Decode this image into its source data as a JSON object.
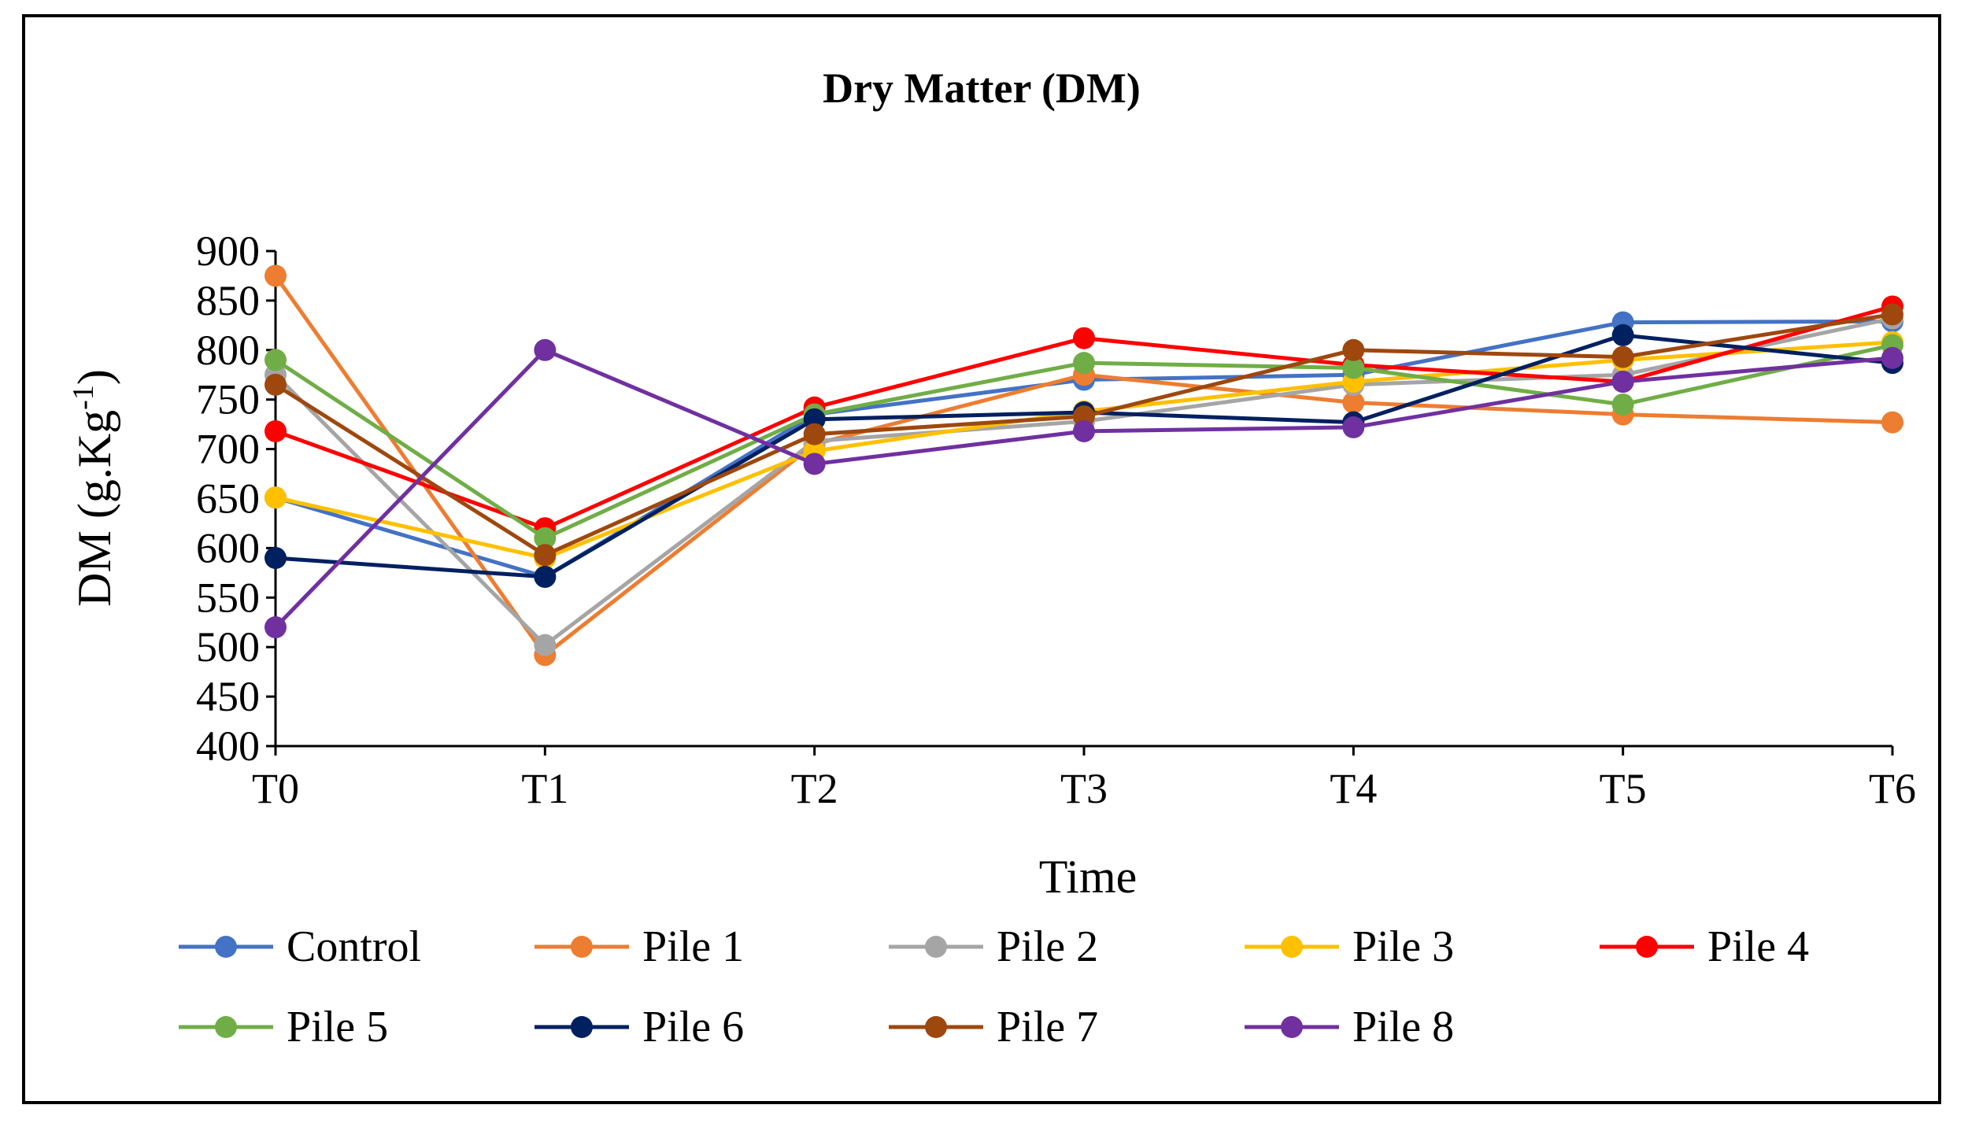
{
  "chart_data": {
    "type": "line",
    "title": "Dry Matter (DM)",
    "xlabel": "Time",
    "ylabel_main": "DM (g.Kg",
    "ylabel_sup": "-1",
    "ylabel_end": ")",
    "ylim": [
      400,
      900
    ],
    "yticks": [
      400,
      450,
      500,
      550,
      600,
      650,
      700,
      750,
      800,
      850,
      900
    ],
    "ytick_labels": [
      "400",
      "450",
      "500",
      "550",
      "600",
      "650",
      "700",
      "750",
      "800",
      "850",
      "900"
    ],
    "categories": [
      "T0",
      "T1",
      "T2",
      "T3",
      "T4",
      "T5",
      "T6"
    ],
    "grid": false,
    "legend_position": "bottom",
    "series": [
      {
        "name": "Control",
        "color": "#4472C4",
        "values": [
          651,
          571,
          735,
          770,
          775,
          828,
          829
        ]
      },
      {
        "name": "Pile 1",
        "color": "#ED7D31",
        "values": [
          875,
          492,
          705,
          775,
          747,
          735,
          727
        ]
      },
      {
        "name": "Pile 2",
        "color": "#A5A5A5",
        "values": [
          775,
          502,
          708,
          728,
          765,
          775,
          832
        ]
      },
      {
        "name": "Pile 3",
        "color": "#FFC000",
        "values": [
          651,
          590,
          698,
          738,
          768,
          790,
          808
        ]
      },
      {
        "name": "Pile 4",
        "color": "#FF0000",
        "values": [
          718,
          620,
          742,
          812,
          785,
          768,
          844
        ]
      },
      {
        "name": "Pile 5",
        "color": "#70AD47",
        "values": [
          790,
          610,
          735,
          787,
          782,
          745,
          805
        ]
      },
      {
        "name": "Pile 6",
        "color": "#002060",
        "values": [
          590,
          571,
          730,
          737,
          727,
          815,
          787
        ]
      },
      {
        "name": "Pile 7",
        "color": "#9E480E",
        "values": [
          765,
          593,
          715,
          733,
          800,
          793,
          836
        ]
      },
      {
        "name": "Pile 8",
        "color": "#7030A0",
        "values": [
          520,
          800,
          685,
          718,
          722,
          768,
          792
        ]
      }
    ]
  }
}
